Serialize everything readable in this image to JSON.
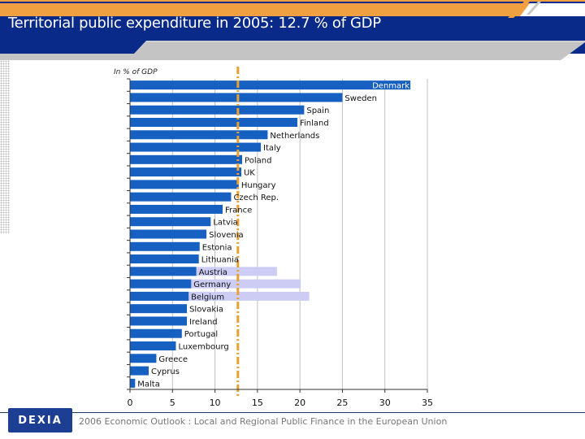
{
  "title": "Territorial public expenditure in 2005: 12.7 % of GDP",
  "footer": {
    "logo_text": "DEXIA",
    "caption": "2006 Economic Outlook : Local and Regional Public Finance in the European Union"
  },
  "colors": {
    "header_blue": "#0a2a8a",
    "accent_orange": "#f0a040",
    "bar_blue": "#1560c0",
    "bar_light": "#ccccf5",
    "reference_line": "#e8a030"
  },
  "chart_data": {
    "type": "bar",
    "orientation": "horizontal",
    "unit_label": "In % of GDP",
    "xlim": [
      0,
      35
    ],
    "xticks": [
      0,
      5,
      10,
      15,
      20,
      25,
      30,
      35
    ],
    "grid": true,
    "reference_line": {
      "value": 12.7,
      "style": "dashed",
      "color": "#e8a030"
    },
    "categories": [
      "Denmark",
      "Sweden",
      "Spain",
      "Finland",
      "Netherlands",
      "Italy",
      "Poland",
      "UK",
      "Hungary",
      "Czech Rep.",
      "France",
      "Latvia",
      "Slovenia",
      "Estonia",
      "Lithuania",
      "Austria",
      "Germany",
      "Belgium",
      "Slovakia",
      "Ireland",
      "Portugal",
      "Luxembourg",
      "Greece",
      "Cyprus",
      "Malta"
    ],
    "series": [
      {
        "values": [
          33.0,
          25.0,
          20.5,
          19.7,
          16.2,
          15.4,
          13.2,
          13.1,
          12.8,
          11.9,
          10.9,
          9.5,
          9.0,
          8.2,
          8.1,
          7.8,
          7.2,
          6.9,
          6.7,
          6.7,
          6.1,
          5.4,
          3.1,
          2.2,
          0.6
        ],
        "color": "#1560c0"
      },
      {
        "values": [
          null,
          null,
          null,
          null,
          null,
          null,
          null,
          null,
          null,
          null,
          null,
          null,
          null,
          null,
          null,
          17.3,
          20.1,
          21.1,
          null,
          null,
          null,
          null,
          null,
          null,
          null
        ],
        "color": "#ccccf5"
      }
    ]
  }
}
